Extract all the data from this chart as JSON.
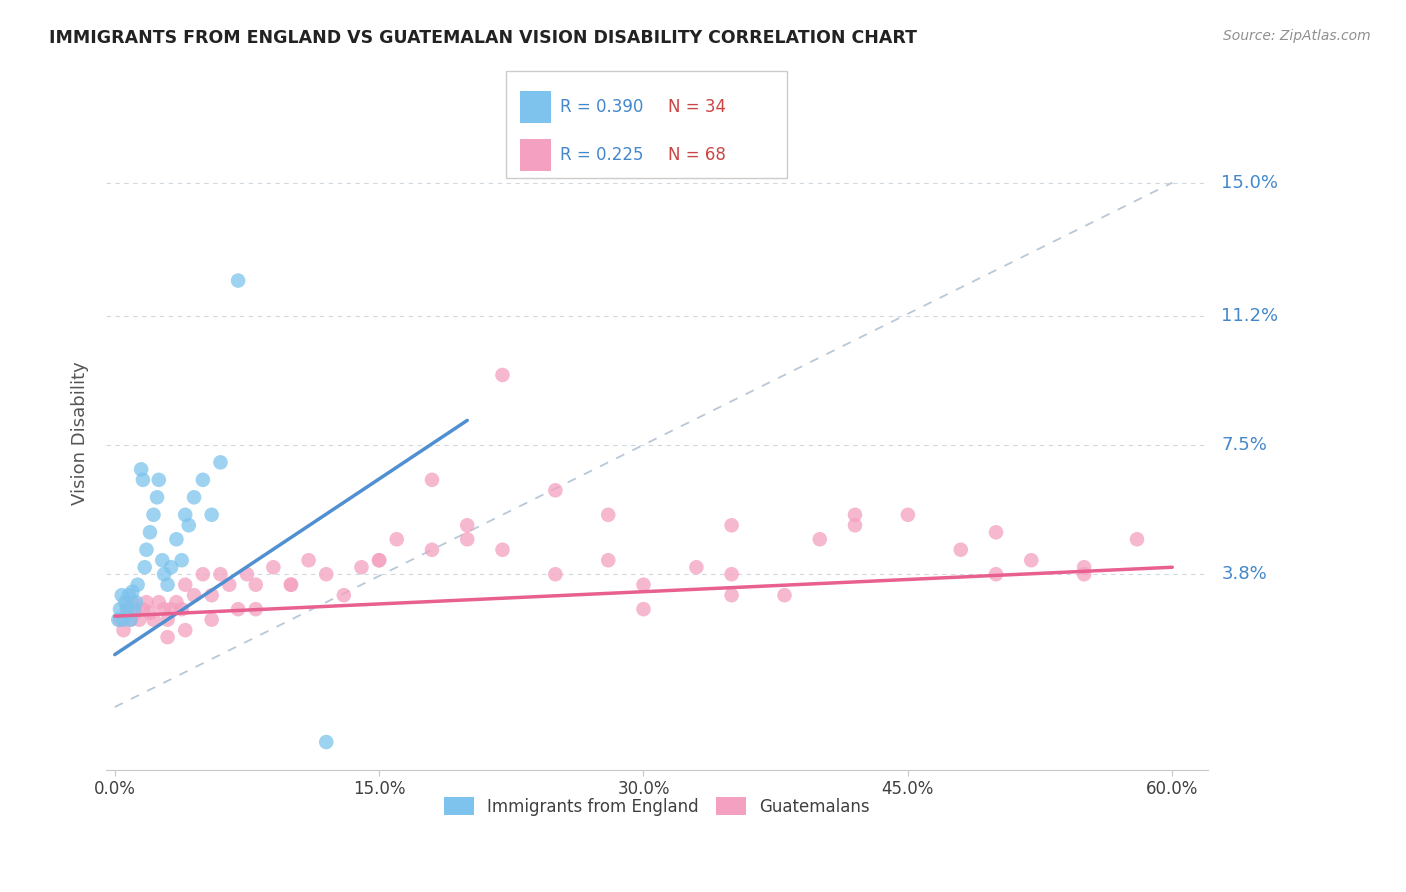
{
  "title": "IMMIGRANTS FROM ENGLAND VS GUATEMALAN VISION DISABILITY CORRELATION CHART",
  "source": "Source: ZipAtlas.com",
  "ylabel": "Vision Disability",
  "xlabel_ticks": [
    "0.0%",
    "15.0%",
    "30.0%",
    "45.0%",
    "60.0%"
  ],
  "ytick_labels": [
    "3.8%",
    "7.5%",
    "11.2%",
    "15.0%"
  ],
  "ytick_values": [
    0.038,
    0.075,
    0.112,
    0.15
  ],
  "xlim": [
    -0.005,
    0.62
  ],
  "ylim": [
    -0.018,
    0.175
  ],
  "legend_entries": [
    {
      "label_r": "R = 0.390",
      "label_n": "N = 34",
      "color": "#7dc3ed"
    },
    {
      "label_r": "R = 0.225",
      "label_n": "N = 68",
      "color": "#f4a0c0"
    }
  ],
  "legend_bottom": [
    {
      "label": "Immigrants from England",
      "color": "#7dc3ed"
    },
    {
      "label": "Guatemalans",
      "color": "#f4a0c0"
    }
  ],
  "blue_scatter_x": [
    0.002,
    0.003,
    0.004,
    0.005,
    0.006,
    0.007,
    0.008,
    0.009,
    0.01,
    0.011,
    0.012,
    0.013,
    0.015,
    0.016,
    0.017,
    0.018,
    0.02,
    0.022,
    0.024,
    0.025,
    0.027,
    0.028,
    0.03,
    0.032,
    0.035,
    0.038,
    0.04,
    0.042,
    0.045,
    0.05,
    0.055,
    0.06,
    0.07,
    0.12
  ],
  "blue_scatter_y": [
    0.025,
    0.028,
    0.032,
    0.025,
    0.03,
    0.028,
    0.032,
    0.025,
    0.033,
    0.028,
    0.03,
    0.035,
    0.068,
    0.065,
    0.04,
    0.045,
    0.05,
    0.055,
    0.06,
    0.065,
    0.042,
    0.038,
    0.035,
    0.04,
    0.048,
    0.042,
    0.055,
    0.052,
    0.06,
    0.065,
    0.055,
    0.07,
    0.122,
    -0.01
  ],
  "pink_scatter_x": [
    0.003,
    0.005,
    0.007,
    0.009,
    0.01,
    0.012,
    0.014,
    0.016,
    0.018,
    0.02,
    0.022,
    0.025,
    0.028,
    0.03,
    0.032,
    0.035,
    0.038,
    0.04,
    0.045,
    0.05,
    0.055,
    0.06,
    0.065,
    0.07,
    0.075,
    0.08,
    0.09,
    0.1,
    0.11,
    0.12,
    0.13,
    0.14,
    0.15,
    0.16,
    0.18,
    0.2,
    0.22,
    0.25,
    0.28,
    0.3,
    0.33,
    0.35,
    0.38,
    0.4,
    0.42,
    0.45,
    0.48,
    0.5,
    0.52,
    0.55,
    0.58,
    0.22,
    0.18,
    0.28,
    0.35,
    0.25,
    0.2,
    0.15,
    0.1,
    0.08,
    0.055,
    0.04,
    0.03,
    0.42,
    0.55,
    0.5,
    0.35,
    0.3
  ],
  "pink_scatter_y": [
    0.025,
    0.022,
    0.028,
    0.025,
    0.03,
    0.027,
    0.025,
    0.028,
    0.03,
    0.027,
    0.025,
    0.03,
    0.028,
    0.025,
    0.028,
    0.03,
    0.028,
    0.035,
    0.032,
    0.038,
    0.032,
    0.038,
    0.035,
    0.028,
    0.038,
    0.035,
    0.04,
    0.035,
    0.042,
    0.038,
    0.032,
    0.04,
    0.042,
    0.048,
    0.045,
    0.052,
    0.045,
    0.038,
    0.042,
    0.035,
    0.04,
    0.038,
    0.032,
    0.048,
    0.052,
    0.055,
    0.045,
    0.038,
    0.042,
    0.04,
    0.048,
    0.095,
    0.065,
    0.055,
    0.052,
    0.062,
    0.048,
    0.042,
    0.035,
    0.028,
    0.025,
    0.022,
    0.02,
    0.055,
    0.038,
    0.05,
    0.032,
    0.028
  ],
  "blue_line_x": [
    0.0,
    0.2
  ],
  "blue_line_y": [
    0.015,
    0.082
  ],
  "pink_line_x": [
    0.0,
    0.6
  ],
  "pink_line_y": [
    0.026,
    0.04
  ],
  "dashed_line_x": [
    0.0,
    0.6
  ],
  "dashed_line_y": [
    0.0,
    0.15
  ],
  "blue_line_color": "#5090d0",
  "pink_line_color": "#e86090",
  "blue_scatter_color": "#7dc3ed",
  "pink_scatter_color": "#f4a0c0",
  "dashed_color": "#b8c8d8",
  "grid_color": "#d0d8e0",
  "background_color": "#ffffff",
  "title_color": "#222222",
  "source_color": "#909090",
  "ytick_color": "#4488cc",
  "xtick_color": "#404040"
}
